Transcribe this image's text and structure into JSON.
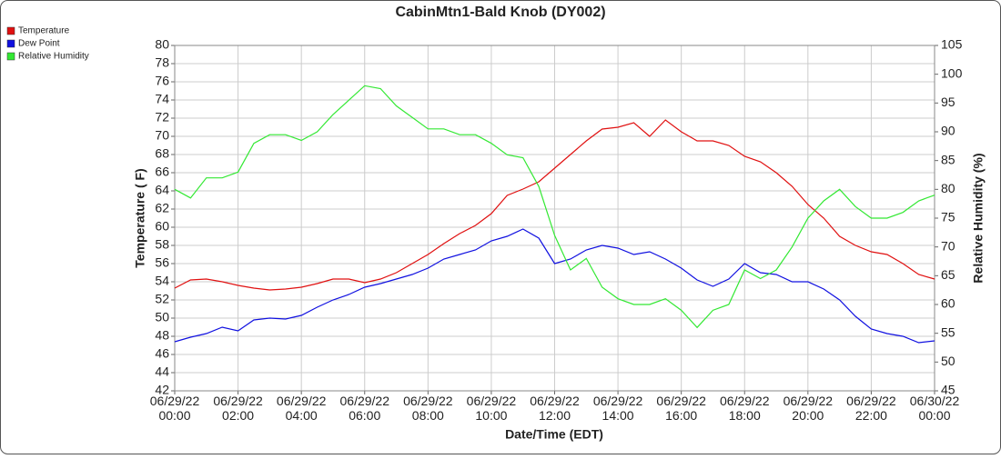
{
  "chart_data": {
    "type": "line",
    "title": "CabinMtn1-Bald Knob (DY002)",
    "xlabel": "Date/Time (EDT)",
    "ylabel": "Temperature ( F)",
    "y2label": "Relative Humidity (%)",
    "x": [
      0,
      0.5,
      1,
      1.5,
      2,
      2.5,
      3,
      3.5,
      4,
      4.5,
      5,
      5.5,
      6,
      6.5,
      7,
      7.5,
      8,
      8.5,
      9,
      9.5,
      10,
      10.5,
      11,
      11.5,
      12,
      12.5,
      13,
      13.5,
      14,
      14.5,
      15,
      15.5,
      16,
      16.5,
      17,
      17.5,
      18,
      18.5,
      19,
      19.5,
      20,
      20.5,
      21,
      21.5,
      22,
      22.5,
      23,
      23.5,
      24
    ],
    "series": [
      {
        "name": "Temperature",
        "color": "#e01010",
        "values": [
          53.3,
          54.2,
          54.3,
          54.0,
          53.6,
          53.3,
          53.1,
          53.2,
          53.4,
          53.8,
          54.3,
          54.3,
          53.9,
          54.3,
          55.0,
          56.0,
          57.0,
          58.2,
          59.3,
          60.2,
          61.5,
          63.5,
          64.2,
          65.0,
          66.5,
          68.0,
          69.5,
          70.8,
          71.0,
          71.5,
          70.0,
          71.8,
          70.5,
          69.5,
          69.5,
          69.0,
          67.8,
          67.2,
          66.0,
          64.5,
          62.5,
          61.0,
          59.0,
          58.0,
          57.3,
          57.0,
          56.0,
          54.8,
          54.3
        ]
      },
      {
        "name": "Dew Point",
        "color": "#1010e0",
        "values": [
          47.4,
          47.9,
          48.3,
          49.0,
          48.6,
          49.8,
          50.0,
          49.9,
          50.3,
          51.2,
          52.0,
          52.6,
          53.4,
          53.8,
          54.3,
          54.8,
          55.5,
          56.5,
          57.0,
          57.5,
          58.5,
          59.0,
          59.8,
          58.8,
          56.0,
          56.5,
          57.5,
          58.0,
          57.7,
          57.0,
          57.3,
          56.5,
          55.5,
          54.2,
          53.5,
          54.3,
          56.0,
          55.0,
          54.8,
          54.0,
          54.0,
          53.2,
          52.0,
          50.2,
          48.8,
          48.3,
          48.0,
          47.3,
          47.5
        ]
      },
      {
        "name": "Relative Humidity",
        "color": "#33e833",
        "axis": "y2",
        "values": [
          80,
          78.5,
          82,
          82,
          83,
          88,
          89.5,
          89.5,
          88.5,
          90,
          93,
          95.5,
          98,
          97.5,
          94.5,
          92.5,
          90.5,
          90.5,
          89.5,
          89.5,
          88,
          86,
          85.5,
          80.5,
          72,
          66,
          68,
          63,
          61,
          60,
          60,
          61,
          59,
          56,
          59,
          60,
          66,
          64.5,
          66,
          70,
          75,
          78,
          80,
          77,
          75,
          75,
          76,
          78,
          79
        ]
      }
    ],
    "xlim": [
      0,
      24
    ],
    "xticks": [
      {
        "value": 0,
        "label": "06/29/22 00:00"
      },
      {
        "value": 2,
        "label": "06/29/22 02:00"
      },
      {
        "value": 4,
        "label": "06/29/22 04:00"
      },
      {
        "value": 6,
        "label": "06/29/22 06:00"
      },
      {
        "value": 8,
        "label": "06/29/22 08:00"
      },
      {
        "value": 10,
        "label": "06/29/22 10:00"
      },
      {
        "value": 12,
        "label": "06/29/22 12:00"
      },
      {
        "value": 14,
        "label": "06/29/22 14:00"
      },
      {
        "value": 16,
        "label": "06/29/22 16:00"
      },
      {
        "value": 18,
        "label": "06/29/22 18:00"
      },
      {
        "value": 20,
        "label": "06/29/22 20:00"
      },
      {
        "value": 22,
        "label": "06/29/22 22:00"
      },
      {
        "value": 24,
        "label": "06/30/22 00:00"
      }
    ],
    "ylim": [
      42,
      80
    ],
    "yticks": [
      42,
      44,
      46,
      48,
      50,
      52,
      54,
      56,
      58,
      60,
      62,
      64,
      66,
      68,
      70,
      72,
      74,
      76,
      78,
      80
    ],
    "y2lim": [
      45,
      105
    ],
    "y2ticks": [
      45,
      50,
      55,
      60,
      65,
      70,
      75,
      80,
      85,
      90,
      95,
      100,
      105
    ],
    "grid": true,
    "legend": "top-left"
  }
}
